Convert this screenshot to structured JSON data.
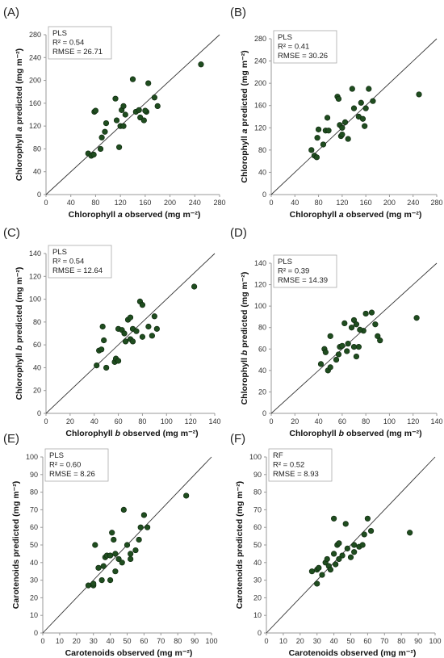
{
  "chart_data": [
    {
      "panel": "(A)",
      "type": "scatter",
      "xlabel": "Chlorophyll a observed (mg m⁻²)",
      "ylabel": "Chlorophyll a predicted (mg m⁻²)",
      "xlim": [
        0,
        280
      ],
      "ylim": [
        0,
        280
      ],
      "xticks": [
        "0",
        "40",
        "80",
        "120",
        "160",
        "200",
        "240",
        "280"
      ],
      "yticks": [
        "0",
        "40",
        "80",
        "120",
        "160",
        "200",
        "240",
        "280"
      ],
      "stats": [
        "PLS",
        "R² = 0.54",
        "RMSE = 26.71"
      ],
      "x": [
        68,
        73,
        77,
        78,
        88,
        90,
        95,
        97,
        112,
        114,
        118,
        120,
        122,
        125,
        128,
        140,
        145,
        150,
        152,
        158,
        162,
        165,
        175,
        180,
        250,
        80,
        125,
        160
      ],
      "y": [
        72,
        68,
        70,
        145,
        80,
        100,
        110,
        125,
        168,
        130,
        83,
        120,
        148,
        155,
        140,
        202,
        145,
        148,
        135,
        130,
        145,
        195,
        170,
        155,
        228,
        147,
        120,
        147
      ]
    },
    {
      "panel": "(B)",
      "type": "scatter",
      "xlabel": "Chlorophyll a observed (mg m⁻²)",
      "ylabel": "Chlorophyll a predicted (mg m⁻²)",
      "xlim": [
        0,
        280
      ],
      "ylim": [
        0,
        280
      ],
      "xticks": [
        "0",
        "40",
        "80",
        "120",
        "160",
        "200",
        "240",
        "280"
      ],
      "yticks": [
        "0",
        "40",
        "80",
        "120",
        "160",
        "200",
        "240",
        "280"
      ],
      "stats": [
        "PLS",
        "R² = 0.41",
        "RMSE = 30.26"
      ],
      "x": [
        68,
        73,
        77,
        78,
        88,
        92,
        95,
        97,
        112,
        114,
        116,
        118,
        120,
        125,
        130,
        137,
        140,
        148,
        152,
        158,
        160,
        165,
        172,
        250,
        80,
        120,
        155
      ],
      "y": [
        80,
        70,
        67,
        102,
        90,
        115,
        138,
        115,
        176,
        172,
        125,
        105,
        120,
        130,
        100,
        190,
        155,
        140,
        165,
        123,
        155,
        190,
        168,
        180,
        117,
        108,
        136
      ]
    },
    {
      "panel": "(C)",
      "type": "scatter",
      "xlabel": "Chlorophyll b observed (mg m⁻²)",
      "ylabel": "Chlorophyll b predicted (mg m⁻²)",
      "xlim": [
        0,
        140
      ],
      "ylim": [
        0,
        140
      ],
      "xticks": [
        "0",
        "20",
        "40",
        "60",
        "80",
        "100",
        "120",
        "140"
      ],
      "yticks": [
        "0",
        "20",
        "40",
        "60",
        "80",
        "100",
        "120",
        "140"
      ],
      "stats": [
        "PLS",
        "R² = 0.54",
        "RMSE = 12.64"
      ],
      "x": [
        42,
        44,
        46,
        47,
        48,
        50,
        57,
        58,
        60,
        63,
        65,
        66,
        68,
        70,
        70,
        72,
        75,
        78,
        80,
        80,
        85,
        88,
        90,
        92,
        123,
        60,
        72
      ],
      "y": [
        42,
        55,
        56,
        76,
        64,
        40,
        45,
        48,
        74,
        73,
        70,
        63,
        82,
        84,
        65,
        74,
        72,
        98,
        95,
        67,
        76,
        68,
        85,
        74,
        111,
        46,
        63
      ]
    },
    {
      "panel": "(D)",
      "type": "scatter",
      "xlabel": "Chlorophyll b observed (mg m⁻²)",
      "ylabel": "Chlorophyll b predicted (mg m⁻²)",
      "xlim": [
        0,
        140
      ],
      "ylim": [
        0,
        140
      ],
      "xticks": [
        "0",
        "20",
        "40",
        "60",
        "80",
        "100",
        "120",
        "140"
      ],
      "yticks": [
        "0",
        "20",
        "40",
        "60",
        "80",
        "100",
        "120",
        "140"
      ],
      "stats": [
        "PLS",
        "R² = 0.39",
        "RMSE = 14.39"
      ],
      "x": [
        42,
        45,
        46,
        48,
        50,
        50,
        55,
        57,
        58,
        62,
        64,
        65,
        68,
        70,
        72,
        72,
        74,
        78,
        80,
        85,
        88,
        90,
        92,
        123,
        60,
        70,
        75
      ],
      "y": [
        46,
        60,
        57,
        40,
        43,
        72,
        50,
        55,
        62,
        84,
        58,
        65,
        80,
        87,
        83,
        53,
        62,
        77,
        93,
        94,
        83,
        72,
        68,
        89,
        63,
        62,
        78
      ]
    },
    {
      "panel": "(E)",
      "type": "scatter",
      "xlabel": "Carotenoids observed (mg m⁻²)",
      "ylabel": "Carotenoids predicted (mg m⁻²)",
      "xlim": [
        0,
        100
      ],
      "ylim": [
        0,
        100
      ],
      "xticks": [
        "0",
        "10",
        "20",
        "30",
        "40",
        "50",
        "60",
        "70",
        "80",
        "90",
        "100"
      ],
      "yticks": [
        "0",
        "10",
        "20",
        "30",
        "40",
        "50",
        "60",
        "70",
        "80",
        "90",
        "100"
      ],
      "stats": [
        "PLS",
        "R² = 0.60",
        "RMSE = 8.26"
      ],
      "x": [
        27,
        30,
        30,
        31,
        33,
        35,
        36,
        37,
        38,
        40,
        40,
        41,
        42,
        43,
        45,
        47,
        48,
        50,
        52,
        55,
        57,
        58,
        60,
        62,
        85,
        43,
        52
      ],
      "y": [
        27,
        27,
        28,
        50,
        37,
        30,
        38,
        43,
        44,
        30,
        44,
        57,
        53,
        45,
        42,
        40,
        70,
        50,
        42,
        47,
        53,
        60,
        67,
        60,
        78,
        35,
        45
      ]
    },
    {
      "panel": "(F)",
      "type": "scatter",
      "xlabel": "Carotenoids observed (mg m⁻²)",
      "ylabel": "Carotenoids predicted (mg m⁻²)",
      "xlim": [
        0,
        100
      ],
      "ylim": [
        0,
        100
      ],
      "xticks": [
        "0",
        "10",
        "20",
        "30",
        "40",
        "50",
        "60",
        "70",
        "80",
        "90",
        "100"
      ],
      "yticks": [
        "0",
        "10",
        "20",
        "30",
        "40",
        "50",
        "60",
        "70",
        "80",
        "90",
        "100"
      ],
      "stats": [
        "RF",
        "R² = 0.52",
        "RMSE = 8.93"
      ],
      "x": [
        27,
        30,
        30,
        31,
        33,
        35,
        36,
        37,
        38,
        40,
        40,
        41,
        42,
        43,
        45,
        47,
        48,
        50,
        52,
        55,
        57,
        58,
        60,
        62,
        85,
        43,
        52
      ],
      "y": [
        35,
        28,
        36,
        37,
        33,
        40,
        42,
        38,
        36,
        45,
        65,
        39,
        50,
        51,
        44,
        62,
        48,
        43,
        46,
        49,
        50,
        56,
        65,
        58,
        57,
        42,
        50
      ]
    }
  ],
  "colors": {
    "marker": "#1f4d1f",
    "marker_stroke": "#0c240c",
    "line": "#333333",
    "axis": "#999999",
    "box_border": "#aaaaaa"
  }
}
